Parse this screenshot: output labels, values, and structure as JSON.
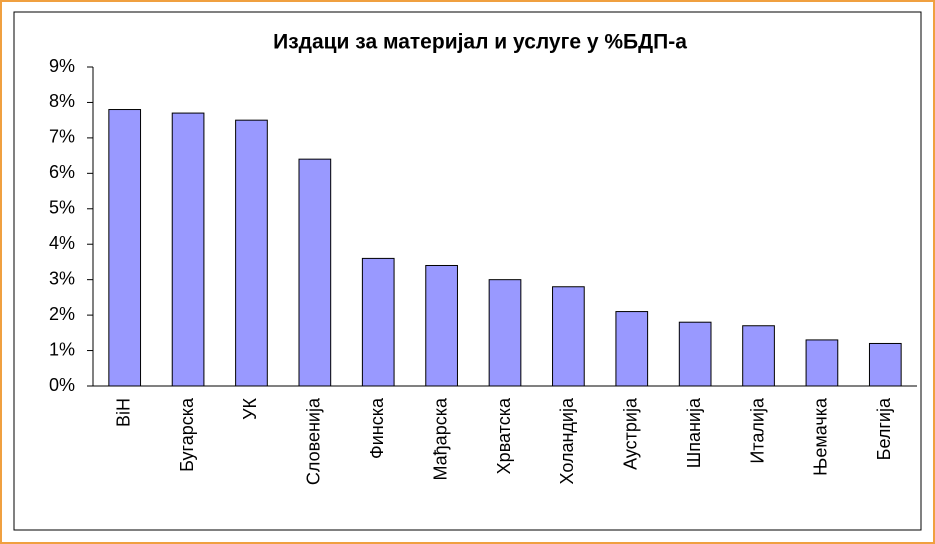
{
  "chart_data": {
    "type": "bar",
    "title": "Издаци за материјал и услуге у %БДП-а",
    "categories": [
      "BiH",
      "Бугарска",
      "УК",
      "Словенија",
      "Финска",
      "Мађарска",
      "Хрватска",
      "Холандија",
      "Аустрија",
      "Шпанија",
      "Италија",
      "Њемачка",
      "Белгија"
    ],
    "values": [
      7.8,
      7.7,
      7.5,
      6.4,
      3.6,
      3.4,
      3.0,
      2.8,
      2.1,
      1.8,
      1.7,
      1.3,
      1.2
    ],
    "color": "#9999ff",
    "ylim": [
      0,
      9
    ],
    "yticks": [
      {
        "value": 0,
        "label": "0%"
      },
      {
        "value": 1,
        "label": "1%"
      },
      {
        "value": 2,
        "label": "2%"
      },
      {
        "value": 3,
        "label": "3%"
      },
      {
        "value": 4,
        "label": "4%"
      },
      {
        "value": 5,
        "label": "5%"
      },
      {
        "value": 6,
        "label": "6%"
      },
      {
        "value": 7,
        "label": "7%"
      },
      {
        "value": 8,
        "label": "8%"
      },
      {
        "value": 9,
        "label": "9%"
      }
    ],
    "grid": false
  }
}
